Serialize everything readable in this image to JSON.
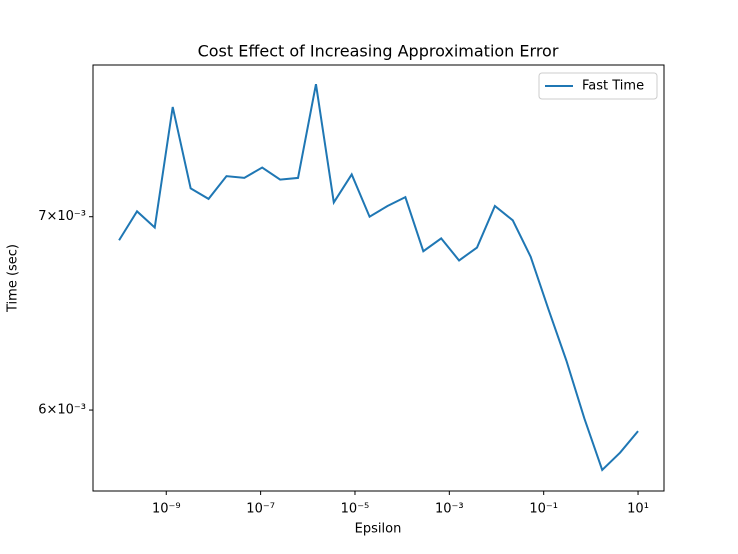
{
  "chart_data": {
    "type": "line",
    "title": "Cost Effect of Increasing Approximation Error",
    "x_label": "Epsilon",
    "y_label": "Time (sec)",
    "xscale": "log",
    "yscale": "log",
    "x": [
      1e-10,
      2.4e-10,
      5.7e-10,
      1.37e-09,
      3.29e-09,
      7.88e-09,
      1.89e-08,
      4.52e-08,
      1.08e-07,
      2.59e-07,
      6.21e-07,
      1.49e-06,
      3.56e-06,
      8.53e-06,
      2.04e-05,
      4.89e-05,
      0.000117,
      0.000281,
      0.000672,
      0.00161,
      0.00386,
      0.00924,
      0.0221,
      0.053,
      0.127,
      0.304,
      0.728,
      1.74,
      4.18,
      10
    ],
    "series": [
      {
        "name": "Fast Time",
        "color": "#1f77b4",
        "values": [
          0.00687,
          0.00703,
          0.00694,
          0.00764,
          0.00716,
          0.0071,
          0.00723,
          0.00722,
          0.00728,
          0.00721,
          0.00722,
          0.00778,
          0.00708,
          0.00724,
          0.007,
          0.00706,
          0.00711,
          0.00681,
          0.00688,
          0.00676,
          0.00683,
          0.00706,
          0.00698,
          0.00678,
          0.0065,
          0.00624,
          0.00596,
          0.00572,
          0.0058,
          0.0059
        ]
      }
    ],
    "xlim": [
      2.8e-11,
      35.5
    ],
    "ylim": [
      0.005625,
      0.0079
    ],
    "xticks": [
      {
        "value": 1e-09,
        "label": "10⁻⁹"
      },
      {
        "value": 1e-07,
        "label": "10⁻⁷"
      },
      {
        "value": 1e-05,
        "label": "10⁻⁵"
      },
      {
        "value": 0.001,
        "label": "10⁻³"
      },
      {
        "value": 0.1,
        "label": "10⁻¹"
      },
      {
        "value": 10,
        "label": "10¹"
      }
    ],
    "yticks": [
      {
        "value": 0.006,
        "label": "6×10⁻³"
      },
      {
        "value": 0.007,
        "label": "7×10⁻³"
      }
    ],
    "grid": false,
    "legend": "upper right"
  }
}
